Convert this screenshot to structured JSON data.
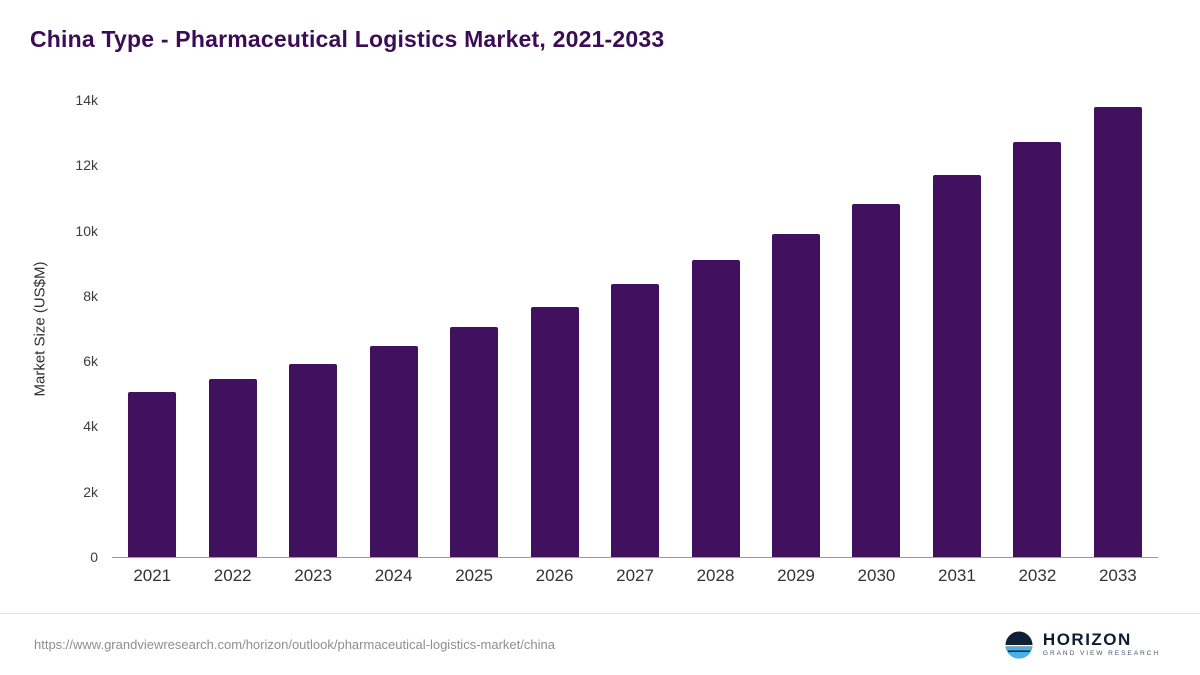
{
  "header": {
    "title": "China Type - Pharmaceutical Logistics Market, 2021-2033"
  },
  "chart_data": {
    "type": "bar",
    "title": "China Type - Pharmaceutical Logistics Market, 2021-2033",
    "categories": [
      "2021",
      "2022",
      "2023",
      "2024",
      "2025",
      "2026",
      "2027",
      "2028",
      "2029",
      "2030",
      "2031",
      "2032",
      "2033"
    ],
    "values": [
      5050,
      5450,
      5900,
      6450,
      7050,
      7650,
      8350,
      9100,
      9900,
      10800,
      11700,
      12700,
      13800
    ],
    "xlabel": "",
    "ylabel": "Market Size (US$M)",
    "ylim": [
      0,
      14000
    ],
    "yticks": [
      {
        "value": 0,
        "label": "0"
      },
      {
        "value": 2000,
        "label": "2k"
      },
      {
        "value": 4000,
        "label": "4k"
      },
      {
        "value": 6000,
        "label": "6k"
      },
      {
        "value": 8000,
        "label": "8k"
      },
      {
        "value": 10000,
        "label": "10k"
      },
      {
        "value": 12000,
        "label": "12k"
      },
      {
        "value": 14000,
        "label": "14k"
      }
    ],
    "grid": false,
    "legend": "none",
    "bar_color": "#41115f"
  },
  "colors": {
    "title": "#3a0d55",
    "bar": "#41115f",
    "axis_text": "#3d3d3d",
    "source_text": "#8f8f8f"
  },
  "footer": {
    "source_url": "https://www.grandviewresearch.com/horizon/outlook/pharmaceutical-logistics-market/china",
    "logo": {
      "name": "HORIZON",
      "subtitle": "GRAND VIEW RESEARCH"
    }
  }
}
